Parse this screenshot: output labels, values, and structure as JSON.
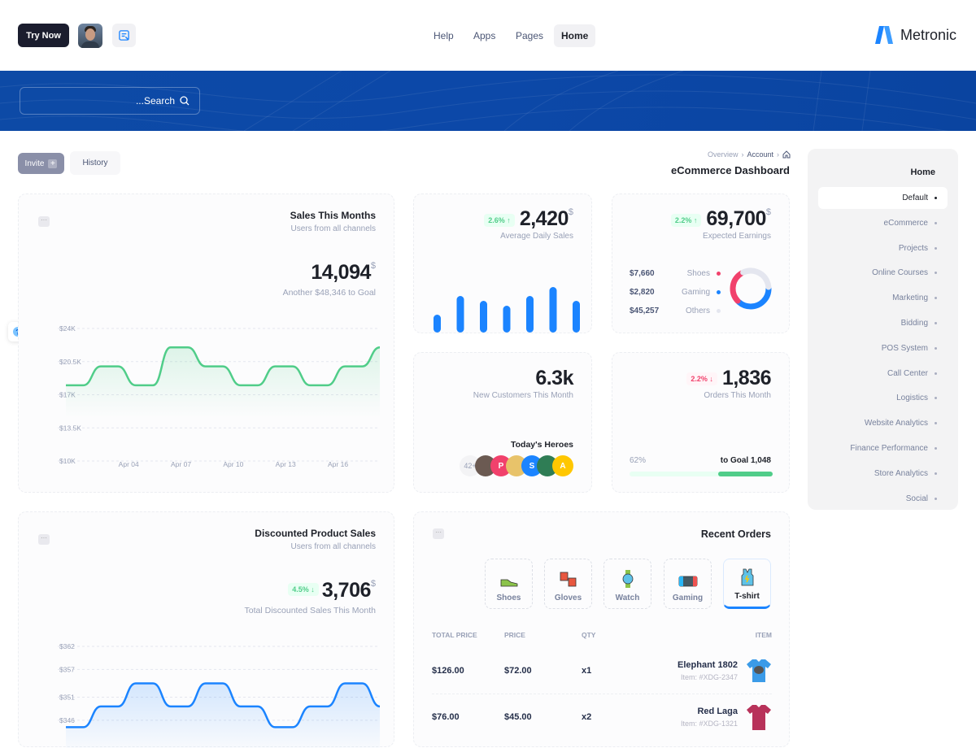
{
  "header": {
    "try_now": "Try Now",
    "nav": [
      "Help",
      "Apps",
      "Pages",
      "Home"
    ],
    "active_nav": "Home",
    "logo_text": "Metronic"
  },
  "search": {
    "placeholder": "...Search"
  },
  "toolbar": {
    "invite": "Invite",
    "invite_icon": "+",
    "history": "History"
  },
  "breadcrumb": {
    "items": [
      "Overview",
      "Account"
    ],
    "home_icon": "home-icon"
  },
  "page_title": "eCommerce Dashboard",
  "sidebar": {
    "heading": "Home",
    "items": [
      "Default",
      "eCommerce",
      "Projects",
      "Online Courses",
      "Marketing",
      "Bidding",
      "POS System",
      "Call Center",
      "Logistics",
      "Website Analytics",
      "Finance Performance",
      "Store Analytics",
      "Social"
    ],
    "active": "Default"
  },
  "sales_card": {
    "title": "Sales This Months",
    "subtitle": "Users from all channels",
    "value": "14,094",
    "currency": "$",
    "goal_text": "Another $48,346 to Goal"
  },
  "daily_sales": {
    "badge": "2.6%",
    "value": "2,420",
    "currency": "$",
    "label": "Average Daily Sales"
  },
  "earnings": {
    "badge": "2.2%",
    "value": "69,700",
    "currency": "$",
    "label": "Expected Earnings",
    "legend": [
      {
        "amount": "$7,660",
        "name": "Shoes",
        "color": "#f1416c"
      },
      {
        "amount": "$2,820",
        "name": "Gaming",
        "color": "#1b84ff"
      },
      {
        "amount": "$45,257",
        "name": "Others",
        "color": "#e4e6ef"
      }
    ]
  },
  "customers": {
    "value": "6.3k",
    "label": "New Customers This Month",
    "heroes_title": "Today's Heroes",
    "more": "42+",
    "initials": [
      "P",
      "S",
      "A"
    ]
  },
  "orders": {
    "badge": "2.2%",
    "value": "1,836",
    "label": "Orders This Month",
    "percent": "62%",
    "goal": "to Goal 1,048",
    "progress": 62
  },
  "discount_card": {
    "title": "Discounted Product Sales",
    "subtitle": "Users from all channels",
    "badge": "4.5%",
    "value": "3,706",
    "currency": "$",
    "label": "Total Discounted Sales This Month"
  },
  "recent_orders": {
    "title": "Recent Orders",
    "tabs": [
      "Shoes",
      "Gloves",
      "Watch",
      "Gaming",
      "T-shirt"
    ],
    "active_tab": "T-shirt",
    "columns": [
      "TOTAL PRICE",
      "PRICE",
      "QTY",
      "ITEM"
    ],
    "rows": [
      {
        "total": "$126.00",
        "price": "$72.00",
        "qty": "x1",
        "name": "Elephant 1802",
        "sku": "Item: #XDG-2347"
      },
      {
        "total": "$76.00",
        "price": "$45.00",
        "qty": "x2",
        "name": "Red Laga",
        "sku": "Item: #XDG-1321"
      }
    ]
  },
  "chart_data": [
    {
      "type": "area",
      "yticks": [
        "$24K",
        "$20.5K",
        "$17K",
        "$13.5K",
        "$10K"
      ],
      "ylim": [
        10000,
        24000
      ],
      "xticks": [
        "Apr 04",
        "Apr 07",
        "Apr 10",
        "Apr 13",
        "Apr 16"
      ],
      "values": [
        18000,
        18000,
        20000,
        20000,
        18000,
        18000,
        22000,
        22000,
        20000,
        20000,
        18000,
        18000,
        20000,
        20000,
        18000,
        18000,
        20000,
        20000,
        22000
      ],
      "color": "#50cd89",
      "grid": true
    },
    {
      "type": "bar",
      "values": [
        22,
        45,
        39,
        33,
        45,
        56,
        39
      ],
      "color": "#1b84ff"
    },
    {
      "type": "pie",
      "labels": [
        "Shoes",
        "Gaming",
        "Others"
      ],
      "values": [
        7660,
        2820,
        45257
      ],
      "colors": [
        "#f1416c",
        "#1b84ff",
        "#e4e6ef"
      ]
    },
    {
      "type": "area",
      "yticks": [
        "$362",
        "$357",
        "$351",
        "$346"
      ],
      "ylim": [
        340,
        362
      ],
      "values": [
        344.5,
        344.5,
        349,
        349,
        354,
        354,
        349,
        349,
        354,
        354,
        349,
        349,
        344.5,
        344.5,
        349,
        349,
        354,
        354,
        349
      ],
      "color": "#1b84ff",
      "grid": true
    }
  ]
}
